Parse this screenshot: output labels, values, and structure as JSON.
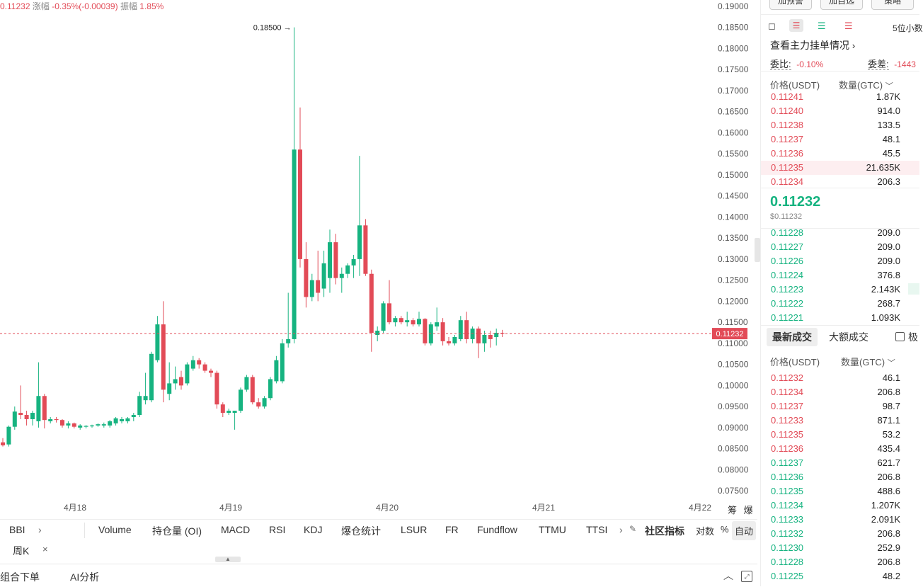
{
  "top_info": {
    "price": "0.11232",
    "change_label": "涨幅",
    "change_value": "-0.35%(-0.00039)",
    "amplitude_label": "振幅",
    "amplitude_value": "1.85%"
  },
  "chart": {
    "y_axis_labels": [
      "0.19000",
      "0.18500",
      "0.18000",
      "0.17500",
      "0.17000",
      "0.16500",
      "0.16000",
      "0.15500",
      "0.15000",
      "0.14500",
      "0.14000",
      "0.13500",
      "0.13000",
      "0.12500",
      "0.12000",
      "0.11500",
      "0.11000",
      "0.10500",
      "0.10000",
      "0.09500",
      "0.09000",
      "0.08500",
      "0.08000",
      "0.07500"
    ],
    "x_axis_labels": [
      "4月18",
      "4月19",
      "4月20",
      "4月21",
      "4月22"
    ],
    "high_marker": "0.18500",
    "current_price_tag": "0.11232",
    "corner_buttons": [
      "筹",
      "爆"
    ],
    "colors": {
      "up": "#16b380",
      "down": "#e24b57"
    }
  },
  "chart_data": {
    "type": "candlestick",
    "series": [
      {
        "o": 0.0865,
        "h": 0.0875,
        "l": 0.0855,
        "c": 0.0858
      },
      {
        "o": 0.086,
        "h": 0.0905,
        "l": 0.0855,
        "c": 0.0902
      },
      {
        "o": 0.0902,
        "h": 0.095,
        "l": 0.0895,
        "c": 0.0938
      },
      {
        "o": 0.0935,
        "h": 0.1,
        "l": 0.092,
        "c": 0.093
      },
      {
        "o": 0.093,
        "h": 0.094,
        "l": 0.0905,
        "c": 0.092
      },
      {
        "o": 0.092,
        "h": 0.094,
        "l": 0.0905,
        "c": 0.0935
      },
      {
        "o": 0.0915,
        "h": 0.1055,
        "l": 0.09,
        "c": 0.0975
      },
      {
        "o": 0.0975,
        "h": 0.098,
        "l": 0.0898,
        "c": 0.0918
      },
      {
        "o": 0.0915,
        "h": 0.0925,
        "l": 0.091,
        "c": 0.092
      },
      {
        "o": 0.092,
        "h": 0.0925,
        "l": 0.0912,
        "c": 0.0918
      },
      {
        "o": 0.0918,
        "h": 0.092,
        "l": 0.09,
        "c": 0.0905
      },
      {
        "o": 0.0905,
        "h": 0.0915,
        "l": 0.0898,
        "c": 0.091
      },
      {
        "o": 0.091,
        "h": 0.0912,
        "l": 0.0898,
        "c": 0.0902
      },
      {
        "o": 0.09,
        "h": 0.0908,
        "l": 0.0895,
        "c": 0.0905
      },
      {
        "o": 0.0902,
        "h": 0.0906,
        "l": 0.0898,
        "c": 0.0904
      },
      {
        "o": 0.0903,
        "h": 0.0907,
        "l": 0.09,
        "c": 0.0905
      },
      {
        "o": 0.0905,
        "h": 0.091,
        "l": 0.0902,
        "c": 0.0908
      },
      {
        "o": 0.0905,
        "h": 0.0912,
        "l": 0.09,
        "c": 0.0908
      },
      {
        "o": 0.0905,
        "h": 0.0918,
        "l": 0.09,
        "c": 0.0915
      },
      {
        "o": 0.091,
        "h": 0.0925,
        "l": 0.0905,
        "c": 0.0922
      },
      {
        "o": 0.0915,
        "h": 0.0925,
        "l": 0.091,
        "c": 0.092
      },
      {
        "o": 0.0915,
        "h": 0.0925,
        "l": 0.091,
        "c": 0.0922
      },
      {
        "o": 0.0925,
        "h": 0.0935,
        "l": 0.0915,
        "c": 0.093
      },
      {
        "o": 0.093,
        "h": 0.0985,
        "l": 0.0925,
        "c": 0.0975
      },
      {
        "o": 0.0965,
        "h": 0.103,
        "l": 0.0955,
        "c": 0.0975
      },
      {
        "o": 0.0965,
        "h": 0.108,
        "l": 0.096,
        "c": 0.1075
      },
      {
        "o": 0.106,
        "h": 0.1165,
        "l": 0.1055,
        "c": 0.1145
      },
      {
        "o": 0.1145,
        "h": 0.12,
        "l": 0.096,
        "c": 0.099
      },
      {
        "o": 0.098,
        "h": 0.1055,
        "l": 0.0965,
        "c": 0.1005
      },
      {
        "o": 0.1005,
        "h": 0.1045,
        "l": 0.099,
        "c": 0.1015
      },
      {
        "o": 0.102,
        "h": 0.1035,
        "l": 0.099,
        "c": 0.1
      },
      {
        "o": 0.1005,
        "h": 0.1055,
        "l": 0.1,
        "c": 0.105
      },
      {
        "o": 0.104,
        "h": 0.107,
        "l": 0.1035,
        "c": 0.106
      },
      {
        "o": 0.106,
        "h": 0.1065,
        "l": 0.104,
        "c": 0.105
      },
      {
        "o": 0.105,
        "h": 0.1055,
        "l": 0.103,
        "c": 0.1035
      },
      {
        "o": 0.1035,
        "h": 0.104,
        "l": 0.102,
        "c": 0.103
      },
      {
        "o": 0.103,
        "h": 0.1035,
        "l": 0.0945,
        "c": 0.0955
      },
      {
        "o": 0.0955,
        "h": 0.096,
        "l": 0.0925,
        "c": 0.0935
      },
      {
        "o": 0.0935,
        "h": 0.0945,
        "l": 0.093,
        "c": 0.094
      },
      {
        "o": 0.0935,
        "h": 0.094,
        "l": 0.0895,
        "c": 0.094
      },
      {
        "o": 0.094,
        "h": 0.0995,
        "l": 0.0935,
        "c": 0.099
      },
      {
        "o": 0.099,
        "h": 0.1025,
        "l": 0.0985,
        "c": 0.102
      },
      {
        "o": 0.102,
        "h": 0.1025,
        "l": 0.0955,
        "c": 0.096
      },
      {
        "o": 0.096,
        "h": 0.097,
        "l": 0.0945,
        "c": 0.095
      },
      {
        "o": 0.095,
        "h": 0.0975,
        "l": 0.0945,
        "c": 0.097
      },
      {
        "o": 0.097,
        "h": 0.102,
        "l": 0.0965,
        "c": 0.1015
      },
      {
        "o": 0.101,
        "h": 0.107,
        "l": 0.1005,
        "c": 0.106
      },
      {
        "o": 0.101,
        "h": 0.111,
        "l": 0.1005,
        "c": 0.11
      },
      {
        "o": 0.11,
        "h": 0.122,
        "l": 0.109,
        "c": 0.111
      },
      {
        "o": 0.111,
        "h": 0.185,
        "l": 0.11,
        "c": 0.156
      },
      {
        "o": 0.156,
        "h": 0.166,
        "l": 0.128,
        "c": 0.13
      },
      {
        "o": 0.13,
        "h": 0.134,
        "l": 0.1185,
        "c": 0.121
      },
      {
        "o": 0.121,
        "h": 0.1265,
        "l": 0.12,
        "c": 0.125
      },
      {
        "o": 0.125,
        "h": 0.132,
        "l": 0.12,
        "c": 0.122
      },
      {
        "o": 0.123,
        "h": 0.132,
        "l": 0.121,
        "c": 0.129
      },
      {
        "o": 0.1255,
        "h": 0.137,
        "l": 0.122,
        "c": 0.134
      },
      {
        "o": 0.134,
        "h": 0.136,
        "l": 0.124,
        "c": 0.1255
      },
      {
        "o": 0.1255,
        "h": 0.128,
        "l": 0.122,
        "c": 0.1265
      },
      {
        "o": 0.1265,
        "h": 0.129,
        "l": 0.1255,
        "c": 0.1285
      },
      {
        "o": 0.1285,
        "h": 0.131,
        "l": 0.1255,
        "c": 0.13
      },
      {
        "o": 0.13,
        "h": 0.1545,
        "l": 0.126,
        "c": 0.138
      },
      {
        "o": 0.138,
        "h": 0.1395,
        "l": 0.126,
        "c": 0.1265
      },
      {
        "o": 0.1265,
        "h": 0.1275,
        "l": 0.108,
        "c": 0.1125
      },
      {
        "o": 0.112,
        "h": 0.114,
        "l": 0.1105,
        "c": 0.113
      },
      {
        "o": 0.113,
        "h": 0.12,
        "l": 0.1125,
        "c": 0.1195
      },
      {
        "o": 0.1195,
        "h": 0.125,
        "l": 0.1145,
        "c": 0.115
      },
      {
        "o": 0.115,
        "h": 0.1165,
        "l": 0.114,
        "c": 0.116
      },
      {
        "o": 0.116,
        "h": 0.1165,
        "l": 0.1145,
        "c": 0.115
      },
      {
        "o": 0.115,
        "h": 0.1175,
        "l": 0.114,
        "c": 0.1155
      },
      {
        "o": 0.1155,
        "h": 0.116,
        "l": 0.114,
        "c": 0.1145
      },
      {
        "o": 0.1145,
        "h": 0.1175,
        "l": 0.114,
        "c": 0.1158
      },
      {
        "o": 0.1158,
        "h": 0.116,
        "l": 0.1095,
        "c": 0.11
      },
      {
        "o": 0.11,
        "h": 0.115,
        "l": 0.1095,
        "c": 0.1145
      },
      {
        "o": 0.114,
        "h": 0.1185,
        "l": 0.113,
        "c": 0.115
      },
      {
        "o": 0.115,
        "h": 0.116,
        "l": 0.1095,
        "c": 0.1105
      },
      {
        "o": 0.1105,
        "h": 0.1115,
        "l": 0.1095,
        "c": 0.11
      },
      {
        "o": 0.11,
        "h": 0.112,
        "l": 0.1095,
        "c": 0.1115
      },
      {
        "o": 0.111,
        "h": 0.1165,
        "l": 0.1105,
        "c": 0.1155
      },
      {
        "o": 0.1155,
        "h": 0.1175,
        "l": 0.11,
        "c": 0.111
      },
      {
        "o": 0.111,
        "h": 0.114,
        "l": 0.11,
        "c": 0.1135
      },
      {
        "o": 0.1135,
        "h": 0.114,
        "l": 0.1065,
        "c": 0.11
      },
      {
        "o": 0.11,
        "h": 0.113,
        "l": 0.108,
        "c": 0.112
      },
      {
        "o": 0.112,
        "h": 0.113,
        "l": 0.109,
        "c": 0.111
      },
      {
        "o": 0.1115,
        "h": 0.1135,
        "l": 0.1095,
        "c": 0.1125
      },
      {
        "o": 0.1125,
        "h": 0.1132,
        "l": 0.1115,
        "c": 0.11232
      }
    ],
    "y_range": [
      0.0725,
      0.1915
    ]
  },
  "indicators": {
    "left": "BBI",
    "items": [
      "Volume",
      "持仓量 (OI)",
      "MACD",
      "RSI",
      "KDJ",
      "爆仓统计",
      "LSUR",
      "FR",
      "Fundflow",
      "TTMU",
      "TTSI"
    ],
    "community": "社区指标",
    "log_label": "对数",
    "pct_label": "%",
    "auto_label": "自动",
    "period_tag": "周K"
  },
  "bottom_bar": {
    "combo": "组合下单",
    "ai": "AI分析"
  },
  "right_panel": {
    "top_buttons": [
      "加预警",
      "加自选",
      "策略"
    ],
    "precision": "5位小数",
    "main_orders_link": "查看主力挂单情况",
    "ratio_label": "委比:",
    "ratio_value": "-0.10%",
    "diff_label": "委差:",
    "diff_value": "-1443",
    "header_price": "价格(USDT)",
    "header_qty": "数量(GTC)",
    "asks": [
      {
        "p": "0.11241",
        "q": "1.87K"
      },
      {
        "p": "0.11240",
        "q": "914.0"
      },
      {
        "p": "0.11238",
        "q": "133.5"
      },
      {
        "p": "0.11237",
        "q": "48.1"
      },
      {
        "p": "0.11236",
        "q": "45.5"
      },
      {
        "p": "0.11235",
        "q": "21.635K"
      },
      {
        "p": "0.11234",
        "q": "206.3"
      }
    ],
    "last_price": "0.11232",
    "last_price_usd": "$0.11232",
    "bids": [
      {
        "p": "0.11228",
        "q": "209.0"
      },
      {
        "p": "0.11227",
        "q": "209.0"
      },
      {
        "p": "0.11226",
        "q": "209.0"
      },
      {
        "p": "0.11224",
        "q": "376.8"
      },
      {
        "p": "0.11223",
        "q": "2.143K"
      },
      {
        "p": "0.11222",
        "q": "268.7"
      },
      {
        "p": "0.11221",
        "q": "1.093K"
      }
    ],
    "tab_latest": "最新成交",
    "tab_large": "大额成交",
    "checkbox_label": "极",
    "trades": [
      {
        "p": "0.11232",
        "q": "46.1",
        "side": "sell"
      },
      {
        "p": "0.11234",
        "q": "206.8",
        "side": "sell"
      },
      {
        "p": "0.11237",
        "q": "98.7",
        "side": "sell"
      },
      {
        "p": "0.11233",
        "q": "871.1",
        "side": "sell"
      },
      {
        "p": "0.11235",
        "q": "53.2",
        "side": "sell"
      },
      {
        "p": "0.11236",
        "q": "435.4",
        "side": "sell"
      },
      {
        "p": "0.11237",
        "q": "621.7",
        "side": "buy"
      },
      {
        "p": "0.11236",
        "q": "206.8",
        "side": "buy"
      },
      {
        "p": "0.11235",
        "q": "488.6",
        "side": "buy"
      },
      {
        "p": "0.11234",
        "q": "1.207K",
        "side": "buy"
      },
      {
        "p": "0.11233",
        "q": "2.091K",
        "side": "buy"
      },
      {
        "p": "0.11232",
        "q": "206.8",
        "side": "buy"
      },
      {
        "p": "0.11230",
        "q": "252.9",
        "side": "buy"
      },
      {
        "p": "0.11228",
        "q": "206.8",
        "side": "buy"
      },
      {
        "p": "0.11225",
        "q": "48.2",
        "side": "buy"
      }
    ]
  }
}
